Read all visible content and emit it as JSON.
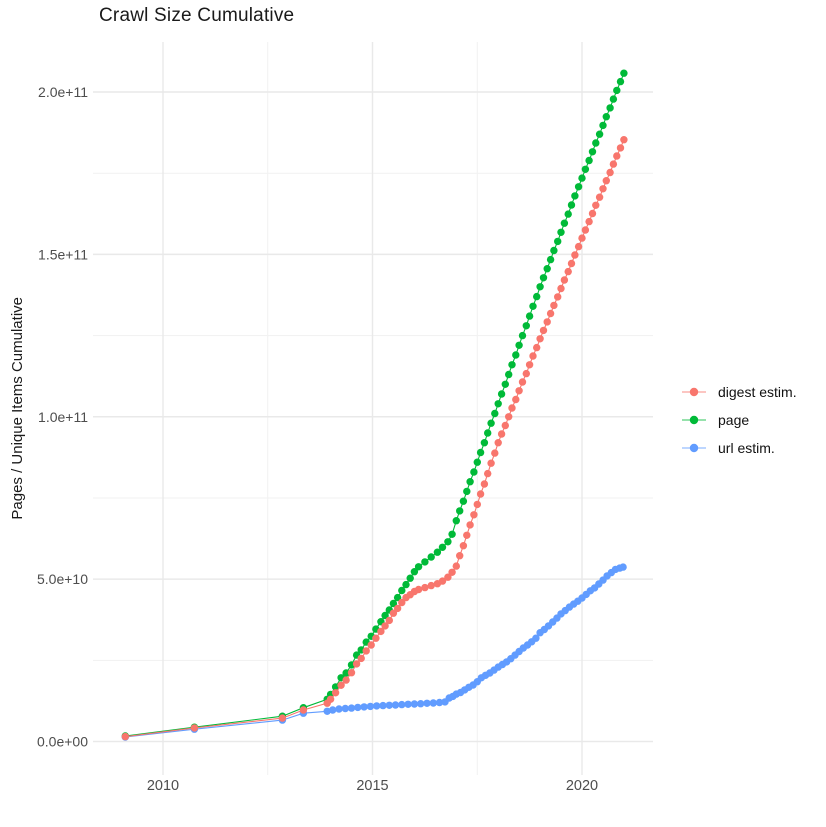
{
  "figure": {
    "title": "Crawl Size Cumulative"
  },
  "colors": {
    "background": "#FFFFFF",
    "grid_major": "#E9E9E9",
    "grid_minor": "#F1F1F1",
    "axis_text": "#4D4D4D",
    "title_text": "#1A1A1A"
  },
  "chart_data": {
    "type": "scatter",
    "title": "Crawl Size Cumulative",
    "xlabel": "",
    "ylabel": "Pages / Unique Items Cumulative",
    "value_scale": 1000000000,
    "legend_position": "right",
    "grid": true,
    "axes": {
      "x_ticks": [
        {
          "value": 2010,
          "label": "2010"
        },
        {
          "value": 2015,
          "label": "2015"
        },
        {
          "value": 2020,
          "label": "2020"
        }
      ],
      "x_minor": [
        2012.5,
        2017.5
      ],
      "y_ticks": [
        {
          "value": 0,
          "label": "0.0e+00"
        },
        {
          "value": 50,
          "label": "5.0e+10"
        },
        {
          "value": 100,
          "label": "1.0e+11"
        },
        {
          "value": 150,
          "label": "1.5e+11"
        },
        {
          "value": 200,
          "label": "2.0e+11"
        }
      ],
      "y_minor": [
        25,
        75,
        125,
        175
      ],
      "x_range_years": [
        2008.4,
        2021.7
      ],
      "y_range_e9": [
        -10,
        215
      ]
    },
    "series": [
      {
        "name": "digest estim.",
        "color": "#F8766D",
        "points": [
          [
            2009.1,
            1.5
          ],
          [
            2010.75,
            4.2
          ],
          [
            2012.85,
            7.2
          ],
          [
            2013.35,
            9.7
          ],
          [
            2013.92,
            11.8
          ],
          [
            2014.0,
            13.0
          ],
          [
            2014.12,
            15.0
          ],
          [
            2014.25,
            17.3
          ],
          [
            2014.37,
            18.9
          ],
          [
            2014.5,
            21.2
          ],
          [
            2014.62,
            23.9
          ],
          [
            2014.73,
            25.6
          ],
          [
            2014.85,
            27.9
          ],
          [
            2014.97,
            29.7
          ],
          [
            2015.08,
            31.8
          ],
          [
            2015.2,
            33.9
          ],
          [
            2015.3,
            35.6
          ],
          [
            2015.4,
            37.3
          ],
          [
            2015.5,
            39.5
          ],
          [
            2015.6,
            41.0
          ],
          [
            2015.7,
            42.8
          ],
          [
            2015.8,
            44.3
          ],
          [
            2015.9,
            45.2
          ],
          [
            2016.0,
            46.2
          ],
          [
            2016.1,
            46.8
          ],
          [
            2016.25,
            47.4
          ],
          [
            2016.4,
            48.0
          ],
          [
            2016.55,
            48.6
          ],
          [
            2016.67,
            49.4
          ],
          [
            2016.8,
            50.6
          ],
          [
            2016.9,
            52.1
          ],
          [
            2017.0,
            54.0
          ],
          [
            2017.08,
            57.2
          ],
          [
            2017.17,
            60.3
          ],
          [
            2017.25,
            63.5
          ],
          [
            2017.33,
            66.7
          ],
          [
            2017.42,
            69.8
          ],
          [
            2017.5,
            73.0
          ],
          [
            2017.58,
            76.2
          ],
          [
            2017.67,
            79.3
          ],
          [
            2017.75,
            82.5
          ],
          [
            2017.83,
            85.7
          ],
          [
            2017.92,
            88.8
          ],
          [
            2018.0,
            92.0
          ],
          [
            2018.08,
            94.7
          ],
          [
            2018.17,
            97.3
          ],
          [
            2018.25,
            100.0
          ],
          [
            2018.33,
            102.7
          ],
          [
            2018.42,
            105.3
          ],
          [
            2018.5,
            108.0
          ],
          [
            2018.58,
            110.7
          ],
          [
            2018.67,
            113.3
          ],
          [
            2018.75,
            116.0
          ],
          [
            2018.83,
            118.7
          ],
          [
            2018.92,
            121.3
          ],
          [
            2019.0,
            124.0
          ],
          [
            2019.08,
            126.6
          ],
          [
            2019.17,
            129.2
          ],
          [
            2019.25,
            131.8
          ],
          [
            2019.33,
            134.3
          ],
          [
            2019.42,
            136.9
          ],
          [
            2019.5,
            139.5
          ],
          [
            2019.58,
            142.1
          ],
          [
            2019.67,
            144.7
          ],
          [
            2019.75,
            147.2
          ],
          [
            2019.83,
            149.8
          ],
          [
            2019.92,
            152.4
          ],
          [
            2020.0,
            155.0
          ],
          [
            2020.08,
            157.5
          ],
          [
            2020.17,
            160.1
          ],
          [
            2020.25,
            162.6
          ],
          [
            2020.33,
            165.1
          ],
          [
            2020.42,
            167.6
          ],
          [
            2020.5,
            170.2
          ],
          [
            2020.58,
            172.7
          ],
          [
            2020.67,
            175.2
          ],
          [
            2020.75,
            177.8
          ],
          [
            2020.83,
            180.3
          ],
          [
            2020.92,
            182.8
          ],
          [
            2021.0,
            185.3
          ]
        ]
      },
      {
        "name": "page",
        "color": "#00BA38",
        "points": [
          [
            2009.1,
            1.7
          ],
          [
            2010.75,
            4.4
          ],
          [
            2012.85,
            7.8
          ],
          [
            2013.35,
            10.4
          ],
          [
            2013.92,
            13.0
          ],
          [
            2014.0,
            14.5
          ],
          [
            2014.12,
            16.8
          ],
          [
            2014.25,
            19.6
          ],
          [
            2014.37,
            21.1
          ],
          [
            2014.5,
            23.6
          ],
          [
            2014.62,
            26.6
          ],
          [
            2014.73,
            28.2
          ],
          [
            2014.85,
            30.6
          ],
          [
            2014.97,
            32.4
          ],
          [
            2015.08,
            34.6
          ],
          [
            2015.2,
            36.9
          ],
          [
            2015.3,
            38.8
          ],
          [
            2015.4,
            40.5
          ],
          [
            2015.5,
            42.5
          ],
          [
            2015.6,
            44.3
          ],
          [
            2015.7,
            46.5
          ],
          [
            2015.8,
            48.3
          ],
          [
            2015.9,
            50.3
          ],
          [
            2016.0,
            52.3
          ],
          [
            2016.1,
            53.8
          ],
          [
            2016.25,
            55.3
          ],
          [
            2016.4,
            56.8
          ],
          [
            2016.55,
            58.3
          ],
          [
            2016.67,
            59.8
          ],
          [
            2016.8,
            61.5
          ],
          [
            2016.9,
            63.8
          ],
          [
            2017.0,
            68.0
          ],
          [
            2017.08,
            71.0
          ],
          [
            2017.17,
            74.0
          ],
          [
            2017.25,
            77.0
          ],
          [
            2017.33,
            80.0
          ],
          [
            2017.42,
            83.0
          ],
          [
            2017.5,
            86.0
          ],
          [
            2017.58,
            89.0
          ],
          [
            2017.67,
            92.0
          ],
          [
            2017.75,
            95.0
          ],
          [
            2017.83,
            98.0
          ],
          [
            2017.92,
            101.0
          ],
          [
            2018.0,
            104.0
          ],
          [
            2018.08,
            107.0
          ],
          [
            2018.17,
            110.0
          ],
          [
            2018.25,
            113.0
          ],
          [
            2018.33,
            116.0
          ],
          [
            2018.42,
            119.0
          ],
          [
            2018.5,
            122.0
          ],
          [
            2018.58,
            125.0
          ],
          [
            2018.67,
            128.0
          ],
          [
            2018.75,
            131.0
          ],
          [
            2018.83,
            134.0
          ],
          [
            2018.92,
            137.0
          ],
          [
            2019.0,
            140.0
          ],
          [
            2019.08,
            142.8
          ],
          [
            2019.17,
            145.6
          ],
          [
            2019.25,
            148.4
          ],
          [
            2019.33,
            151.2
          ],
          [
            2019.42,
            154.0
          ],
          [
            2019.5,
            156.8
          ],
          [
            2019.58,
            159.6
          ],
          [
            2019.67,
            162.4
          ],
          [
            2019.75,
            165.2
          ],
          [
            2019.83,
            168.0
          ],
          [
            2019.92,
            170.8
          ],
          [
            2020.0,
            173.5
          ],
          [
            2020.08,
            176.2
          ],
          [
            2020.17,
            178.9
          ],
          [
            2020.25,
            181.6
          ],
          [
            2020.33,
            184.3
          ],
          [
            2020.42,
            187.0
          ],
          [
            2020.5,
            189.7
          ],
          [
            2020.58,
            192.4
          ],
          [
            2020.67,
            195.1
          ],
          [
            2020.75,
            197.8
          ],
          [
            2020.83,
            200.5
          ],
          [
            2020.92,
            203.2
          ],
          [
            2021.0,
            205.8
          ]
        ]
      },
      {
        "name": "url estim.",
        "color": "#619CFF",
        "points": [
          [
            2009.1,
            1.4
          ],
          [
            2010.75,
            3.8
          ],
          [
            2012.85,
            6.6
          ],
          [
            2013.35,
            8.7
          ],
          [
            2013.92,
            9.3
          ],
          [
            2014.05,
            9.7
          ],
          [
            2014.2,
            10.0
          ],
          [
            2014.35,
            10.15
          ],
          [
            2014.5,
            10.3
          ],
          [
            2014.65,
            10.5
          ],
          [
            2014.8,
            10.65
          ],
          [
            2014.95,
            10.8
          ],
          [
            2015.1,
            10.95
          ],
          [
            2015.25,
            11.05
          ],
          [
            2015.4,
            11.15
          ],
          [
            2015.55,
            11.25
          ],
          [
            2015.7,
            11.35
          ],
          [
            2015.85,
            11.45
          ],
          [
            2016.0,
            11.55
          ],
          [
            2016.15,
            11.65
          ],
          [
            2016.3,
            11.75
          ],
          [
            2016.45,
            11.85
          ],
          [
            2016.6,
            12.0
          ],
          [
            2016.73,
            12.2
          ],
          [
            2016.83,
            13.4
          ],
          [
            2016.92,
            13.9
          ],
          [
            2017.0,
            14.6
          ],
          [
            2017.1,
            15.1
          ],
          [
            2017.2,
            15.9
          ],
          [
            2017.3,
            16.7
          ],
          [
            2017.4,
            17.4
          ],
          [
            2017.5,
            18.4
          ],
          [
            2017.6,
            19.6
          ],
          [
            2017.7,
            20.4
          ],
          [
            2017.8,
            21.1
          ],
          [
            2017.9,
            22.0
          ],
          [
            2018.0,
            22.9
          ],
          [
            2018.1,
            23.7
          ],
          [
            2018.2,
            24.5
          ],
          [
            2018.3,
            25.5
          ],
          [
            2018.4,
            26.6
          ],
          [
            2018.5,
            27.7
          ],
          [
            2018.6,
            28.8
          ],
          [
            2018.7,
            29.7
          ],
          [
            2018.8,
            30.7
          ],
          [
            2018.9,
            31.8
          ],
          [
            2019.0,
            33.5
          ],
          [
            2019.1,
            34.5
          ],
          [
            2019.2,
            35.6
          ],
          [
            2019.3,
            36.8
          ],
          [
            2019.4,
            38.0
          ],
          [
            2019.5,
            39.3
          ],
          [
            2019.6,
            40.3
          ],
          [
            2019.7,
            41.4
          ],
          [
            2019.8,
            42.3
          ],
          [
            2019.9,
            43.2
          ],
          [
            2020.0,
            44.2
          ],
          [
            2020.1,
            45.3
          ],
          [
            2020.2,
            46.4
          ],
          [
            2020.3,
            47.3
          ],
          [
            2020.4,
            48.5
          ],
          [
            2020.5,
            49.7
          ],
          [
            2020.6,
            51.0
          ],
          [
            2020.7,
            52.0
          ],
          [
            2020.8,
            53.0
          ],
          [
            2020.9,
            53.4
          ],
          [
            2020.98,
            53.7
          ]
        ]
      }
    ]
  }
}
